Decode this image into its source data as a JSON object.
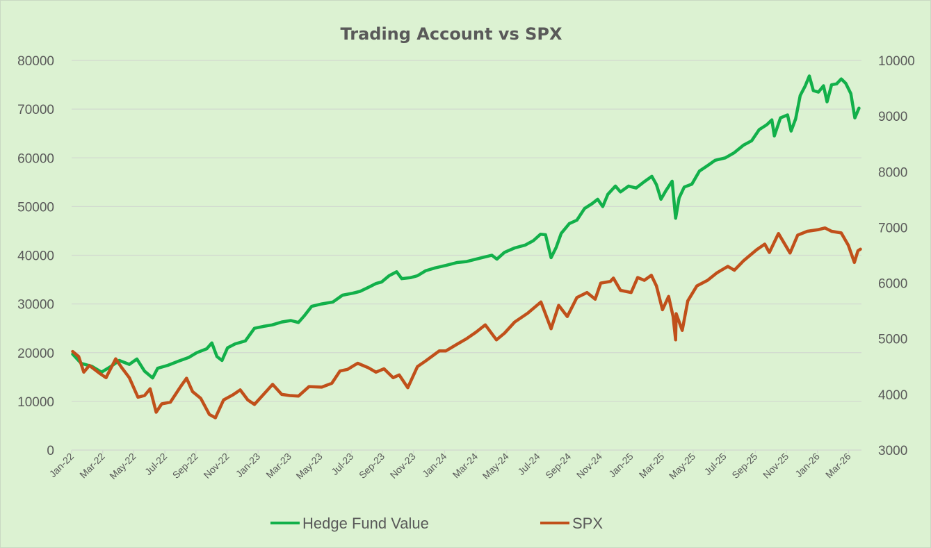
{
  "colors": {
    "background": "#dcf2d2",
    "gridline": "#d2d9cf",
    "hedge_fund": "#12b04a",
    "spx": "#c0501a",
    "text": "#595959"
  },
  "chart_data": {
    "type": "line",
    "title": "Trading Account vs SPX",
    "x_tick_labels": [
      "Jan-22",
      "Mar-22",
      "May-22",
      "Jul-22",
      "Sep-22",
      "Nov-22",
      "Jan-23",
      "Mar-23",
      "May-23",
      "Jul-23",
      "Sep-23",
      "Nov-23",
      "Jan-24",
      "Mar-24",
      "May-24",
      "Jul-24",
      "Sep-24",
      "Nov-24",
      "Jan-25",
      "Mar-25",
      "May-25",
      "Jul-25",
      "Sep-25",
      "Nov-25",
      "Jan-26",
      "Mar-26"
    ],
    "x_range": [
      "2022-01-01",
      "2026-04-10"
    ],
    "y_left": {
      "min": 0,
      "max": 80000,
      "step": 10000,
      "ticks": [
        "0",
        "10000",
        "20000",
        "30000",
        "40000",
        "50000",
        "60000",
        "70000",
        "80000"
      ]
    },
    "y_right": {
      "min": 3000,
      "max": 10000,
      "step": 1000,
      "ticks": [
        "3000",
        "4000",
        "5000",
        "6000",
        "7000",
        "8000",
        "9000",
        "10000"
      ]
    },
    "gridlines": true,
    "legend_position": "bottom",
    "series": [
      {
        "name": "Hedge Fund Value",
        "axis": "left",
        "points": [
          [
            "2022-01-03",
            19700
          ],
          [
            "2022-01-20",
            17800
          ],
          [
            "2022-02-10",
            17200
          ],
          [
            "2022-03-01",
            16000
          ],
          [
            "2022-03-20",
            17200
          ],
          [
            "2022-04-05",
            18400
          ],
          [
            "2022-04-25",
            17600
          ],
          [
            "2022-05-10",
            18700
          ],
          [
            "2022-05-25",
            16200
          ],
          [
            "2022-06-10",
            14800
          ],
          [
            "2022-06-20",
            16800
          ],
          [
            "2022-07-10",
            17400
          ],
          [
            "2022-08-01",
            18300
          ],
          [
            "2022-08-20",
            19000
          ],
          [
            "2022-09-05",
            20000
          ],
          [
            "2022-09-25",
            20800
          ],
          [
            "2022-10-05",
            22000
          ],
          [
            "2022-10-15",
            19200
          ],
          [
            "2022-10-25",
            18400
          ],
          [
            "2022-11-05",
            21000
          ],
          [
            "2022-11-20",
            21800
          ],
          [
            "2022-12-10",
            22400
          ],
          [
            "2022-12-28",
            25000
          ],
          [
            "2023-01-15",
            25400
          ],
          [
            "2023-02-01",
            25700
          ],
          [
            "2023-02-20",
            26300
          ],
          [
            "2023-03-10",
            26600
          ],
          [
            "2023-03-25",
            26200
          ],
          [
            "2023-04-05",
            27500
          ],
          [
            "2023-04-20",
            29500
          ],
          [
            "2023-05-10",
            30000
          ],
          [
            "2023-06-01",
            30400
          ],
          [
            "2023-06-20",
            31800
          ],
          [
            "2023-07-10",
            32200
          ],
          [
            "2023-07-25",
            32600
          ],
          [
            "2023-08-10",
            33400
          ],
          [
            "2023-08-25",
            34200
          ],
          [
            "2023-09-05",
            34500
          ],
          [
            "2023-09-20",
            35800
          ],
          [
            "2023-10-05",
            36600
          ],
          [
            "2023-10-15",
            35200
          ],
          [
            "2023-11-01",
            35400
          ],
          [
            "2023-11-15",
            35800
          ],
          [
            "2023-12-01",
            36800
          ],
          [
            "2023-12-20",
            37400
          ],
          [
            "2024-01-10",
            37900
          ],
          [
            "2024-02-01",
            38500
          ],
          [
            "2024-02-20",
            38700
          ],
          [
            "2024-03-10",
            39200
          ],
          [
            "2024-03-25",
            39600
          ],
          [
            "2024-04-10",
            40000
          ],
          [
            "2024-04-20",
            39200
          ],
          [
            "2024-05-05",
            40600
          ],
          [
            "2024-05-25",
            41500
          ],
          [
            "2024-06-15",
            42100
          ],
          [
            "2024-07-01",
            43000
          ],
          [
            "2024-07-15",
            44300
          ],
          [
            "2024-07-25",
            44200
          ],
          [
            "2024-08-05",
            39500
          ],
          [
            "2024-08-15",
            41600
          ],
          [
            "2024-08-25",
            44500
          ],
          [
            "2024-09-10",
            46500
          ],
          [
            "2024-09-25",
            47200
          ],
          [
            "2024-10-10",
            49600
          ],
          [
            "2024-10-25",
            50600
          ],
          [
            "2024-11-05",
            51500
          ],
          [
            "2024-11-15",
            50000
          ],
          [
            "2024-11-25",
            52500
          ],
          [
            "2024-12-10",
            54200
          ],
          [
            "2024-12-20",
            53000
          ],
          [
            "2025-01-05",
            54200
          ],
          [
            "2025-01-20",
            53800
          ],
          [
            "2025-02-05",
            55100
          ],
          [
            "2025-02-20",
            56200
          ],
          [
            "2025-03-01",
            54500
          ],
          [
            "2025-03-10",
            51500
          ],
          [
            "2025-03-20",
            53300
          ],
          [
            "2025-04-01",
            55200
          ],
          [
            "2025-04-08",
            47600
          ],
          [
            "2025-04-15",
            51800
          ],
          [
            "2025-04-25",
            54000
          ],
          [
            "2025-05-10",
            54600
          ],
          [
            "2025-05-25",
            57300
          ],
          [
            "2025-06-10",
            58400
          ],
          [
            "2025-06-25",
            59500
          ],
          [
            "2025-07-15",
            60000
          ],
          [
            "2025-08-01",
            61000
          ],
          [
            "2025-08-20",
            62600
          ],
          [
            "2025-09-05",
            63500
          ],
          [
            "2025-09-20",
            65800
          ],
          [
            "2025-10-05",
            66800
          ],
          [
            "2025-10-15",
            67800
          ],
          [
            "2025-10-20",
            64500
          ],
          [
            "2025-11-01",
            68200
          ],
          [
            "2025-11-15",
            68800
          ],
          [
            "2025-11-22",
            65500
          ],
          [
            "2025-12-01",
            68000
          ],
          [
            "2025-12-10",
            72800
          ],
          [
            "2025-12-20",
            74800
          ],
          [
            "2025-12-28",
            76800
          ],
          [
            "2026-01-05",
            73800
          ],
          [
            "2026-01-15",
            73500
          ],
          [
            "2026-01-25",
            74800
          ],
          [
            "2026-02-01",
            71500
          ],
          [
            "2026-02-10",
            75000
          ],
          [
            "2026-02-20",
            75200
          ],
          [
            "2026-03-01",
            76200
          ],
          [
            "2026-03-10",
            75300
          ],
          [
            "2026-03-20",
            73200
          ],
          [
            "2026-03-28",
            68200
          ],
          [
            "2026-04-05",
            70200
          ]
        ]
      },
      {
        "name": "SPX",
        "axis": "right",
        "points": [
          [
            "2022-01-03",
            4770
          ],
          [
            "2022-01-15",
            4680
          ],
          [
            "2022-01-25",
            4400
          ],
          [
            "2022-02-05",
            4520
          ],
          [
            "2022-02-25",
            4380
          ],
          [
            "2022-03-10",
            4300
          ],
          [
            "2022-03-29",
            4640
          ],
          [
            "2022-04-10",
            4480
          ],
          [
            "2022-04-25",
            4300
          ],
          [
            "2022-05-12",
            3950
          ],
          [
            "2022-05-25",
            3980
          ],
          [
            "2022-06-05",
            4100
          ],
          [
            "2022-06-17",
            3680
          ],
          [
            "2022-06-28",
            3830
          ],
          [
            "2022-07-15",
            3860
          ],
          [
            "2022-08-05",
            4150
          ],
          [
            "2022-08-16",
            4290
          ],
          [
            "2022-08-28",
            4050
          ],
          [
            "2022-09-13",
            3930
          ],
          [
            "2022-09-30",
            3640
          ],
          [
            "2022-10-12",
            3580
          ],
          [
            "2022-10-28",
            3900
          ],
          [
            "2022-11-15",
            3990
          ],
          [
            "2022-11-30",
            4080
          ],
          [
            "2022-12-15",
            3900
          ],
          [
            "2022-12-28",
            3820
          ],
          [
            "2023-01-15",
            4000
          ],
          [
            "2023-02-02",
            4180
          ],
          [
            "2023-02-20",
            4000
          ],
          [
            "2023-03-08",
            3980
          ],
          [
            "2023-03-25",
            3970
          ],
          [
            "2023-04-15",
            4140
          ],
          [
            "2023-05-10",
            4130
          ],
          [
            "2023-05-30",
            4200
          ],
          [
            "2023-06-15",
            4420
          ],
          [
            "2023-06-30",
            4450
          ],
          [
            "2023-07-20",
            4560
          ],
          [
            "2023-08-10",
            4480
          ],
          [
            "2023-08-25",
            4400
          ],
          [
            "2023-09-10",
            4460
          ],
          [
            "2023-09-28",
            4300
          ],
          [
            "2023-10-10",
            4350
          ],
          [
            "2023-10-27",
            4120
          ],
          [
            "2023-11-15",
            4500
          ],
          [
            "2023-12-01",
            4600
          ],
          [
            "2023-12-28",
            4780
          ],
          [
            "2024-01-10",
            4780
          ],
          [
            "2024-02-01",
            4900
          ],
          [
            "2024-02-20",
            5000
          ],
          [
            "2024-03-10",
            5120
          ],
          [
            "2024-03-28",
            5250
          ],
          [
            "2024-04-19",
            4980
          ],
          [
            "2024-05-05",
            5100
          ],
          [
            "2024-05-25",
            5300
          ],
          [
            "2024-06-20",
            5460
          ],
          [
            "2024-07-16",
            5660
          ],
          [
            "2024-08-05",
            5180
          ],
          [
            "2024-08-20",
            5600
          ],
          [
            "2024-09-06",
            5400
          ],
          [
            "2024-09-25",
            5740
          ],
          [
            "2024-10-15",
            5830
          ],
          [
            "2024-10-31",
            5710
          ],
          [
            "2024-11-11",
            6000
          ],
          [
            "2024-11-30",
            6030
          ],
          [
            "2024-12-06",
            6090
          ],
          [
            "2024-12-20",
            5870
          ],
          [
            "2025-01-10",
            5830
          ],
          [
            "2025-01-23",
            6100
          ],
          [
            "2025-02-05",
            6050
          ],
          [
            "2025-02-19",
            6140
          ],
          [
            "2025-03-01",
            5950
          ],
          [
            "2025-03-13",
            5520
          ],
          [
            "2025-03-25",
            5760
          ],
          [
            "2025-04-03",
            5400
          ],
          [
            "2025-04-08",
            4980
          ],
          [
            "2025-04-09",
            5450
          ],
          [
            "2025-04-21",
            5150
          ],
          [
            "2025-05-02",
            5680
          ],
          [
            "2025-05-20",
            5950
          ],
          [
            "2025-06-10",
            6050
          ],
          [
            "2025-06-28",
            6180
          ],
          [
            "2025-07-20",
            6300
          ],
          [
            "2025-08-02",
            6230
          ],
          [
            "2025-08-20",
            6400
          ],
          [
            "2025-09-15",
            6600
          ],
          [
            "2025-10-01",
            6700
          ],
          [
            "2025-10-10",
            6550
          ],
          [
            "2025-10-28",
            6890
          ],
          [
            "2025-11-20",
            6540
          ],
          [
            "2025-12-05",
            6860
          ],
          [
            "2025-12-24",
            6930
          ],
          [
            "2026-01-15",
            6960
          ],
          [
            "2026-01-28",
            6990
          ],
          [
            "2026-02-10",
            6930
          ],
          [
            "2026-03-01",
            6900
          ],
          [
            "2026-03-15",
            6680
          ],
          [
            "2026-03-27",
            6370
          ],
          [
            "2026-04-03",
            6580
          ],
          [
            "2026-04-08",
            6610
          ]
        ]
      }
    ]
  },
  "legend": {
    "items": [
      {
        "label": "Hedge Fund Value",
        "color_key": "hedge_fund"
      },
      {
        "label": "SPX",
        "color_key": "spx"
      }
    ]
  }
}
